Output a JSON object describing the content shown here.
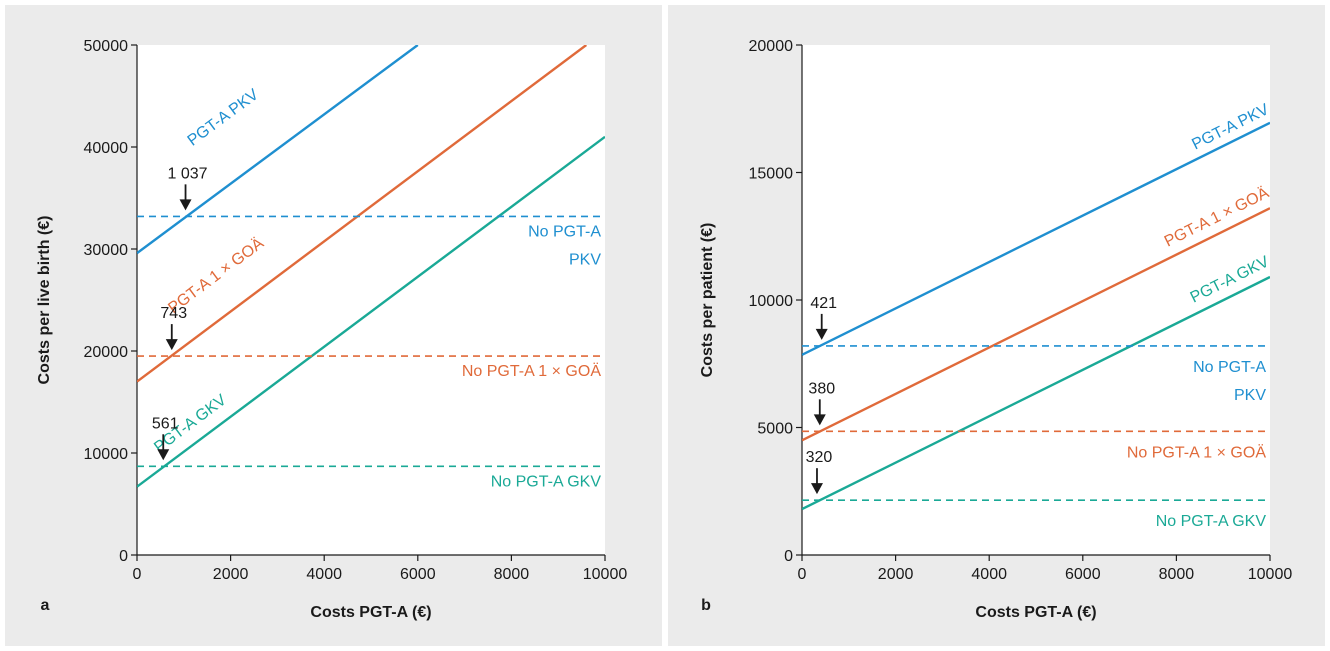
{
  "chart_data": [
    {
      "type": "line",
      "panel_label": "a",
      "xlabel": "Costs PGT-A (€)",
      "ylabel": "Costs per live birth (€)",
      "xlim": [
        0,
        10000
      ],
      "ylim": [
        0,
        50000
      ],
      "xticks": [
        0,
        2000,
        4000,
        6000,
        8000,
        10000
      ],
      "yticks": [
        0,
        10000,
        20000,
        30000,
        40000,
        50000
      ],
      "grid": false,
      "series": [
        {
          "name": "PGT-A PKV",
          "style": "solid",
          "color": "#1f8fd0",
          "x": [
            0,
            6000
          ],
          "y": [
            29600,
            50000
          ]
        },
        {
          "name": "PGT-A 1 × GOÄ",
          "style": "solid",
          "color": "#e06a3a",
          "x": [
            0,
            9600
          ],
          "y": [
            17000,
            50000
          ]
        },
        {
          "name": "PGT-A GKV",
          "style": "solid",
          "color": "#1aa996",
          "x": [
            0,
            10000
          ],
          "y": [
            6700,
            41000
          ]
        },
        {
          "name": "No PGT-A PKV",
          "label_lines": [
            "No PGT-A",
            "PKV"
          ],
          "style": "dashed",
          "color": "#1f8fd0",
          "x": [
            0,
            10000
          ],
          "y": [
            33200,
            33200
          ]
        },
        {
          "name": "No PGT-A 1 × GOÄ",
          "label_lines": [
            "No PGT-A 1 × GOÄ"
          ],
          "style": "dashed",
          "color": "#e06a3a",
          "x": [
            0,
            10000
          ],
          "y": [
            19500,
            19500
          ]
        },
        {
          "name": "No PGT-A GKV",
          "label_lines": [
            "No PGT-A GKV"
          ],
          "style": "dashed",
          "color": "#1aa996",
          "x": [
            0,
            10000
          ],
          "y": [
            8700,
            8700
          ]
        }
      ],
      "annotations": [
        {
          "text": "1 037",
          "x": 1037,
          "y": 33200
        },
        {
          "text": "743",
          "x": 743,
          "y": 19500
        },
        {
          "text": "561",
          "x": 561,
          "y": 8700
        }
      ]
    },
    {
      "type": "line",
      "panel_label": "b",
      "xlabel": "Costs PGT-A (€)",
      "ylabel": "Costs per patient (€)",
      "xlim": [
        0,
        10000
      ],
      "ylim": [
        0,
        20000
      ],
      "xticks": [
        0,
        2000,
        4000,
        6000,
        8000,
        10000
      ],
      "yticks": [
        0,
        5000,
        10000,
        15000,
        20000
      ],
      "grid": false,
      "series": [
        {
          "name": "PGT-A PKV",
          "style": "solid",
          "color": "#1f8fd0",
          "x": [
            0,
            10000
          ],
          "y": [
            7850,
            16950
          ]
        },
        {
          "name": "PGT-A 1 × GOÄ",
          "style": "solid",
          "color": "#e06a3a",
          "x": [
            0,
            10000
          ],
          "y": [
            4500,
            13600
          ]
        },
        {
          "name": "PGT-A GKV",
          "style": "solid",
          "color": "#1aa996",
          "x": [
            0,
            10000
          ],
          "y": [
            1800,
            10900
          ]
        },
        {
          "name": "No PGT-A PKV",
          "label_lines": [
            "No PGT-A",
            "PKV"
          ],
          "style": "dashed",
          "color": "#1f8fd0",
          "x": [
            0,
            10000
          ],
          "y": [
            8200,
            8200
          ]
        },
        {
          "name": "No PGT-A 1 × GOÄ",
          "label_lines": [
            "No PGT-A 1 × GOÄ"
          ],
          "style": "dashed",
          "color": "#e06a3a",
          "x": [
            0,
            10000
          ],
          "y": [
            4850,
            4850
          ]
        },
        {
          "name": "No PGT-A GKV",
          "label_lines": [
            "No PGT-A GKV"
          ],
          "style": "dashed",
          "color": "#1aa996",
          "x": [
            0,
            10000
          ],
          "y": [
            2150,
            2150
          ]
        }
      ],
      "annotations": [
        {
          "text": "421",
          "x": 421,
          "y": 8200
        },
        {
          "text": "380",
          "x": 380,
          "y": 4850
        },
        {
          "text": "320",
          "x": 320,
          "y": 2150
        }
      ]
    }
  ]
}
